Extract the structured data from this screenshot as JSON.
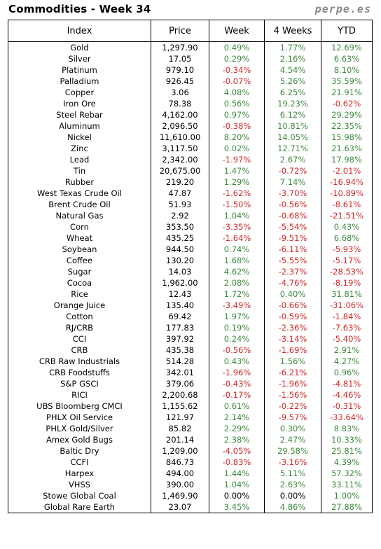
{
  "header": {
    "title": "Commodities - Week 34",
    "site": "perpe.es"
  },
  "columns": [
    "Index",
    "Price",
    "Week",
    "4 Weeks",
    "YTD"
  ],
  "rows": [
    [
      "Gold",
      "1,297.90",
      "0.49%",
      "1.77%",
      "12.69%"
    ],
    [
      "Silver",
      "17.05",
      "0.29%",
      "2.16%",
      "6.63%"
    ],
    [
      "Platinum",
      "979.10",
      "-0.34%",
      "4.54%",
      "8.10%"
    ],
    [
      "Palladium",
      "926.45",
      "-0.07%",
      "5.26%",
      "35.59%"
    ],
    [
      "Copper",
      "3.06",
      "4.08%",
      "6.25%",
      "21.91%"
    ],
    [
      "Iron Ore",
      "78.38",
      "0.56%",
      "19.23%",
      "-0.62%"
    ],
    [
      "Steel Rebar",
      "4,162.00",
      "0.97%",
      "6.12%",
      "29.29%"
    ],
    [
      "Aluminum",
      "2,096.50",
      "-0.38%",
      "10.81%",
      "22.35%"
    ],
    [
      "Nickel",
      "11,610.00",
      "8.20%",
      "14.05%",
      "15.98%"
    ],
    [
      "Zinc",
      "3,117.50",
      "0.02%",
      "12.71%",
      "21.63%"
    ],
    [
      "Lead",
      "2,342.00",
      "-1.97%",
      "2.67%",
      "17.98%"
    ],
    [
      "Tin",
      "20,675.00",
      "1.47%",
      "-0.72%",
      "-2.01%"
    ],
    [
      "Rubber",
      "219.20",
      "1.29%",
      "7.14%",
      "-16.94%"
    ],
    [
      "West Texas Crude Oil",
      "47.87",
      "-1.62%",
      "-3.70%",
      "-10.89%"
    ],
    [
      "Brent Crude Oil",
      "51.93",
      "-1.50%",
      "-0.56%",
      "-8.61%"
    ],
    [
      "Natural Gas",
      "2.92",
      "1.04%",
      "-0.68%",
      "-21.51%"
    ],
    [
      "Corn",
      "353.50",
      "-3.35%",
      "-5.54%",
      "0.43%"
    ],
    [
      "Wheat",
      "435.25",
      "-1.64%",
      "-9.51%",
      "6.68%"
    ],
    [
      "Soybean",
      "944.50",
      "0.74%",
      "-6.11%",
      "-5.93%"
    ],
    [
      "Coffee",
      "130.20",
      "1.68%",
      "-5.55%",
      "-5.17%"
    ],
    [
      "Sugar",
      "14.03",
      "4.62%",
      "-2.37%",
      "-28.53%"
    ],
    [
      "Cocoa",
      "1,962.00",
      "2.08%",
      "-4.76%",
      "-8.19%"
    ],
    [
      "Rice",
      "12.43",
      "1.72%",
      "0.40%",
      "31.81%"
    ],
    [
      "Orange Juice",
      "135.40",
      "-3.49%",
      "-0.66%",
      "-31.06%"
    ],
    [
      "Cotton",
      "69.42",
      "1.97%",
      "-0.59%",
      "-1.84%"
    ],
    [
      "RJ/CRB",
      "177.83",
      "0.19%",
      "-2.36%",
      "-7.63%"
    ],
    [
      "CCI",
      "397.92",
      "0.24%",
      "-3.14%",
      "-5.40%"
    ],
    [
      "CRB",
      "435.38",
      "-0.56%",
      "-1.69%",
      "2.91%"
    ],
    [
      "CRB Raw Industrials",
      "514.28",
      "0.43%",
      "1.56%",
      "4.27%"
    ],
    [
      "CRB Foodstuffs",
      "342.01",
      "-1.96%",
      "-6.21%",
      "0.96%"
    ],
    [
      "S&P GSCI",
      "379.06",
      "-0.43%",
      "-1.96%",
      "-4.81%"
    ],
    [
      "RICI",
      "2,200.68",
      "-0.17%",
      "-1.56%",
      "-4.46%"
    ],
    [
      "UBS Bloomberg CMCI",
      "1,155.62",
      "0.61%",
      "-0.22%",
      "-0.31%"
    ],
    [
      "PHLX Oil Service",
      "121.97",
      "2.14%",
      "-9.57%",
      "-33.64%"
    ],
    [
      "PHLX Gold/Silver",
      "85.82",
      "2.29%",
      "0.30%",
      "8.83%"
    ],
    [
      "Amex Gold Bugs",
      "201.14",
      "2.38%",
      "2.47%",
      "10.33%"
    ],
    [
      "Baltic Dry",
      "1,209.00",
      "-4.05%",
      "29.58%",
      "25.81%"
    ],
    [
      "CCFI",
      "846.73",
      "-0.83%",
      "-3.16%",
      "4.39%"
    ],
    [
      "Harpex",
      "494.00",
      "1.44%",
      "5.11%",
      "57.32%"
    ],
    [
      "VHSS",
      "390.00",
      "1.04%",
      "2.63%",
      "33.11%"
    ],
    [
      "Stowe Global Coal",
      "1,469.90",
      "0.00%",
      "0.00%",
      "1.00%"
    ],
    [
      "Global Rare Earth",
      "23.07",
      "3.45%",
      "4.86%",
      "27.88%"
    ]
  ],
  "colors": {
    "positive": "#3d8a3d",
    "negative": "#d42a2a",
    "neutral": "#000000",
    "site": "#8a8a8a"
  }
}
